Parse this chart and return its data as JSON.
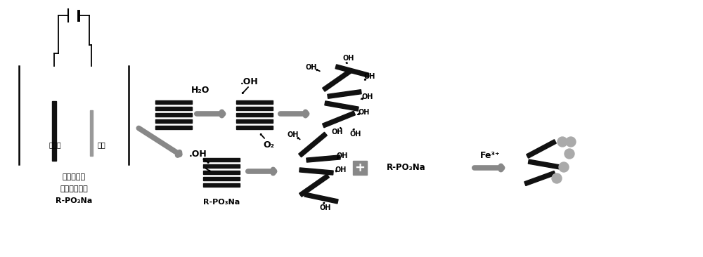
{
  "bg_color": "#ffffff",
  "lc": "#000000",
  "gc": "#111111",
  "gray": "#888888",
  "lgray": "#aaaaaa",
  "label_bottom1": "二乙烯三胺",
  "label_bottom2": "五甲叉膝酸钔",
  "label_bottom3": "R-PO₃Na",
  "label_e1": "石墨纸",
  "label_e2": "铜棒",
  "label_h2o": "H₂O",
  "label_oh_rad": ".OH",
  "label_o2": "O₂",
  "label_rpo3na": "R-PO₃Na",
  "label_fe3": "Fe³⁺",
  "label_oh": "OH"
}
